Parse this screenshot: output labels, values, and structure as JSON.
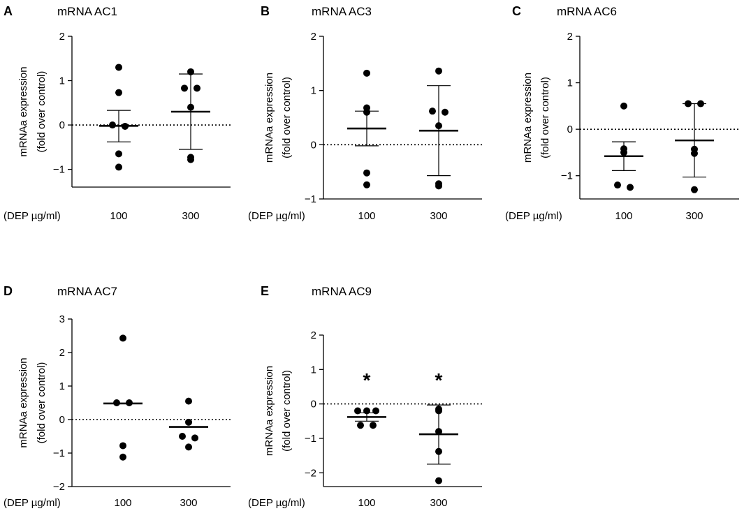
{
  "chart_data": [
    {
      "type": "scatter",
      "panel": "A",
      "title": "mRNA AC1",
      "xlabel": "(DEP µg/ml)",
      "ylabel": [
        "mRNAa expression",
        "(fold over control)"
      ],
      "ylim": [
        -1.4,
        2
      ],
      "yticks": [
        2,
        1,
        0,
        -1
      ],
      "categories": [
        "100",
        "300"
      ],
      "reference_line": 0,
      "groups": [
        {
          "category": "100",
          "points": [
            1.3,
            0.73,
            0.0,
            -0.03,
            -0.65,
            -0.95
          ],
          "mean": -0.02,
          "err_low": -0.38,
          "err_high": 0.33
        },
        {
          "category": "300",
          "points": [
            1.2,
            0.83,
            0.83,
            0.4,
            -0.73,
            -0.78
          ],
          "mean": 0.3,
          "err_low": -0.55,
          "err_high": 1.15
        }
      ],
      "annotations": []
    },
    {
      "type": "scatter",
      "panel": "B",
      "title": "mRNA AC3",
      "xlabel": "(DEP µg/ml)",
      "ylabel": [
        "mRNAa expression",
        "(fold over control)"
      ],
      "ylim": [
        -1,
        2
      ],
      "yticks": [
        2,
        1,
        0,
        -1
      ],
      "categories": [
        "100",
        "300"
      ],
      "reference_line": 0,
      "groups": [
        {
          "category": "100",
          "points": [
            1.32,
            0.68,
            0.6,
            -0.52,
            -0.74
          ],
          "mean": 0.3,
          "err_low": -0.02,
          "err_high": 0.62
        },
        {
          "category": "300",
          "points": [
            1.36,
            0.62,
            0.6,
            0.35,
            -0.72,
            -0.76
          ],
          "mean": 0.26,
          "err_low": -0.57,
          "err_high": 1.09
        }
      ],
      "annotations": []
    },
    {
      "type": "scatter",
      "panel": "C",
      "title": "mRNA AC6",
      "xlabel": "(DEP µg/ml)",
      "ylabel": [
        "mRNAa expression",
        "(fold over control)"
      ],
      "ylim": [
        -1.5,
        2
      ],
      "yticks": [
        2,
        1,
        0,
        -1
      ],
      "categories": [
        "100",
        "300"
      ],
      "reference_line": 0,
      "groups": [
        {
          "category": "100",
          "points": [
            0.5,
            -0.42,
            -0.5,
            -1.2,
            -1.25
          ],
          "mean": -0.58,
          "err_low": -0.89,
          "err_high": -0.27
        },
        {
          "category": "300",
          "points": [
            0.55,
            0.55,
            -0.43,
            -0.52,
            -1.3
          ],
          "mean": -0.24,
          "err_low": -1.03,
          "err_high": 0.55
        }
      ],
      "annotations": []
    },
    {
      "type": "scatter",
      "panel": "D",
      "title": "mRNA AC7",
      "xlabel": "(DEP µg/ml)",
      "ylabel": [
        "mRNAa expression",
        "(fold over control)"
      ],
      "ylim": [
        -2,
        3
      ],
      "yticks": [
        3,
        2,
        1,
        0,
        -1,
        -2
      ],
      "categories": [
        "100",
        "300"
      ],
      "reference_line": 0,
      "groups": [
        {
          "category": "100",
          "points": [
            2.43,
            0.5,
            0.5,
            -0.78,
            -1.12
          ],
          "mean": 0.48,
          "err_low": null,
          "err_high": null
        },
        {
          "category": "300",
          "points": [
            0.55,
            -0.08,
            -0.5,
            -0.55,
            -0.82
          ],
          "mean": -0.22,
          "err_low": null,
          "err_high": null
        }
      ],
      "annotations": []
    },
    {
      "type": "scatter",
      "panel": "E",
      "title": "mRNA AC9",
      "xlabel": "(DEP µg/ml)",
      "ylabel": [
        "mRNAa expression",
        "(fold over control)"
      ],
      "ylim": [
        -2.4,
        2
      ],
      "yticks": [
        2,
        1,
        0,
        -1,
        -2
      ],
      "categories": [
        "100",
        "300"
      ],
      "reference_line": 0,
      "groups": [
        {
          "category": "100",
          "points": [
            -0.2,
            -0.2,
            -0.2,
            -0.62,
            -0.62
          ],
          "mean": -0.38,
          "err_low": -0.5,
          "err_high": -0.26
        },
        {
          "category": "300",
          "points": [
            -0.2,
            -0.15,
            -0.8,
            -1.38,
            -2.23
          ],
          "mean": -0.88,
          "err_low": -1.75,
          "err_high": -0.03
        }
      ],
      "annotations": [
        "*",
        "*"
      ]
    }
  ]
}
